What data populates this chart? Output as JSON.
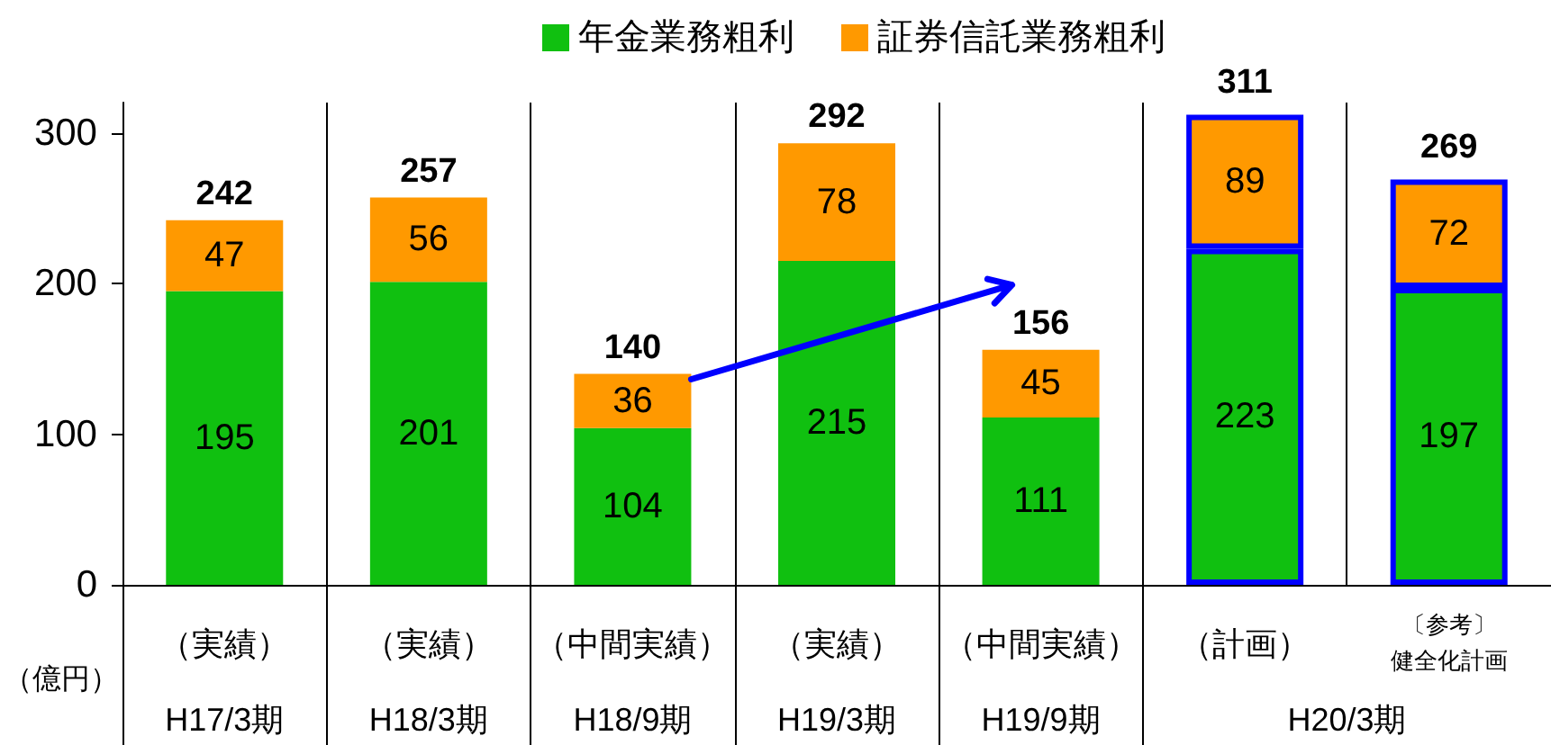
{
  "chart_data": {
    "type": "bar",
    "stacked": true,
    "categories": [
      "（実績）\nH17/3期",
      "（実績）\nH18/3期",
      "（中間実績）\nH18/9期",
      "（実績）\nH19/3期",
      "（中間実績）\nH19/9期",
      "（計画）",
      "〔参考〕健全化計画"
    ],
    "series": [
      {
        "name": "年金業務粗利",
        "color": "#10c010",
        "values": [
          195,
          201,
          104,
          215,
          111,
          223,
          197
        ]
      },
      {
        "name": "証券信託業務粗利",
        "color": "#ff9900",
        "values": [
          47,
          56,
          36,
          78,
          45,
          89,
          72
        ]
      }
    ],
    "ylabel": "（億円）",
    "ylim": [
      0,
      320
    ],
    "yticks": [
      0,
      100,
      200,
      300
    ],
    "grid": "x",
    "legend": "top",
    "data_labels": true,
    "totals": [
      "242",
      "257",
      "140",
      "292",
      "156",
      "311",
      "269"
    ],
    "annotations": [
      "H20/3期"
    ]
  }
}
